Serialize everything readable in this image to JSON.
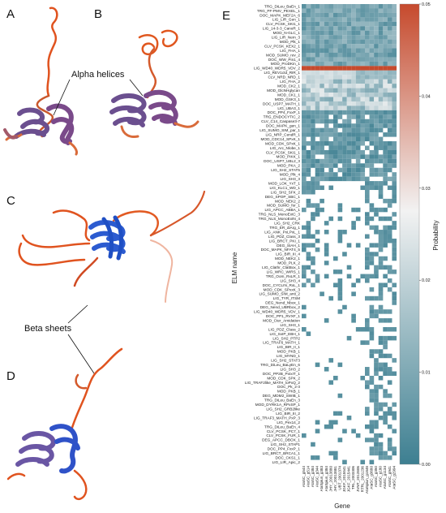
{
  "panels": {
    "a": "A",
    "b": "B",
    "c": "C",
    "d": "D",
    "e": "E",
    "alpha_label": "Alpha helices",
    "beta_label": "Beta sheets"
  },
  "chart_data": {
    "type": "heatmap",
    "ylabel": "ELM name",
    "xlabel": "Gene",
    "colorbar_label": "Probability",
    "colorbar_ticks": [
      "0.00",
      "0.01",
      "0.02",
      "0.03",
      "0.04",
      "0.05"
    ],
    "vmin": 0.0,
    "vmax": 0.05,
    "colormap": {
      "low": "#3d7f91",
      "mid": "#f2f2f2",
      "high": "#c64a2d"
    },
    "x_categories": [
      "AtaSC_g544",
      "AtaSC_g514",
      "AtaSC_g384",
      "AtaSC_g344",
      "AtaSpiun_g383",
      "AtaSpiun_g384",
      "JHY_20013880",
      "JHY_20013881",
      "UBT_2001374",
      "JGKF_2015541",
      "JGKF_2015441",
      "TRL_2003306",
      "JVNT_2012806",
      "RTRL_2001236",
      "AtaSpiun_g1848",
      "AtaSC_g3680",
      "AtaSC_g350",
      "AtaSC_g180",
      "AtaSC_g1134",
      "AtaSC_g941",
      "AtaSC_g2994"
    ],
    "y_categories": [
      "TRG_DiLeu_BaEn_1",
      "TRG_PF-PMV_PEXEL_1",
      "DOC_MAPK_MEF2A_6",
      "LIG_LIR_Gen_1",
      "CLV_PCSK_SKI1_1",
      "LIG_14-3-3_CanoR_1",
      "MOD_N-GLC_1",
      "LIG_LIR_Nem_3",
      "MOD_Plk_1",
      "CLV_PCSK_KEX2_1",
      "LIG_FHA_1",
      "MOD_SUMO_rev_2",
      "DOC_WW_Pin1_4",
      "MOD_ProDKin_1",
      "LIG_WD40_WDR5_VDV_2",
      "LIG_REV1ctd_RIR_1",
      "CLV_NRD_NRD_1",
      "LIG_FHA_2",
      "MOD_CK2_1",
      "MOD_GlcNHglycan",
      "MOD_CK1_1",
      "MOD_GSK3_1",
      "DOC_USP7_MATH_1",
      "LIG_UBA3_1",
      "DOC_PP4_FxxP_1",
      "TRG_ENDOCYTIC_2",
      "CLV_C14_Caspase3-7",
      "DOC_MAPK_gen_1",
      "LIG_SUMO_SIM_par_1",
      "LIG_NRP_CendR_1",
      "MOD_CDC14_SPxK_1",
      "MOD_CDK_SPxK_1",
      "LIG_Arc_Nlobe_1",
      "CLV_PCSK_SKI1_1",
      "MOD_PIKK_1",
      "DOC_USP7_UBL2_3",
      "MOD_PKA_2",
      "LIG_SH2_STAT5",
      "MOD_Plk_4",
      "LIG_SH3_3",
      "MOD_LOK_YxT_1",
      "LIG_KLC1_WD_1",
      "LIG_SH2_SFK_2",
      "DEG_SPOP_SBC_1",
      "MOD_NEK2_2",
      "MOD_SUMO_for_1",
      "LIG_APCC_ABBA_1",
      "TRG_NLS_MonoExtC_3",
      "TRG_NLS_MonoExtN_4",
      "LIG_SH2_CRK",
      "TRG_ER_diArg_1",
      "LIG_ANK_PxLPxL_1",
      "LIG_PDZ_Class_3",
      "LIG_BRCT_PKI_1",
      "DEG_SIAH_1",
      "DOC_MAPK_NFAT4_5",
      "LIG_BIR_III_4",
      "MOD_NEK2_1",
      "MOD_PLK_2",
      "LIG_Clathr_ClatBox_1",
      "LIG_WRC_WIRS_1",
      "TRG_Oom_RxLR_1",
      "LIG_SH3_4",
      "DOC_CYCLIN_RxL_1",
      "MOD_CDK_SPxxK_3",
      "LIG_SUMO_SIM_anti_2",
      "LIG_TYR_ITSM",
      "DEG_Nend_Nbox_1",
      "DEG_Nend_UBRbox_2",
      "LIG_WD40_WDR5_VDV_1",
      "DOC_PP1_RVXF_1",
      "MOD_Cter_Amidation",
      "LIG_SH3_1",
      "LIG_PDZ_Class_2",
      "LIG_SxIP_EBH_1",
      "LIG_SH2_PTP2",
      "LIG_TRAF6_MATH_1",
      "LIG_BIR_II_1",
      "MOD_PKB_1",
      "LIG_MYND_1",
      "LIG_SH2_STAT3",
      "TRG_DiLeu_BaLyEn_6",
      "LIG_SH3_2",
      "DOC_PP2B_PxIxIT_1",
      "MOD_CDK_SPK_2",
      "LIG_TRAF2like_MATH_loPxQ_2",
      "DOC_Pk_2-3",
      "MOD_PKB_1",
      "DEG_MDM2_SWIB_1",
      "TRG_DiLeu_BaEn_3",
      "MOD_DYRK1A_RPxSP_1",
      "LIG_SH2_GRB2like",
      "LIG_BIR_III_2",
      "LIG_TRAF3_MATH_PxP_3",
      "LIG_Pex14_2",
      "TRG_DiLeu_BaEn_4",
      "CLV_PCSK_PC7_1",
      "CLV_PCSK_FUR_1",
      "DEG_APCC_DBOX_1",
      "LIG_SH2_STAP1",
      "DOC_PP4_FxxP_1",
      "LIG_BRCT_BRCA1_1",
      "DOC_CKS1_1",
      "LIG_LIR_Apic_2"
    ],
    "note": "Values are estimated from the colour of each heatmap cell; 0.0 means white (absent)."
  }
}
